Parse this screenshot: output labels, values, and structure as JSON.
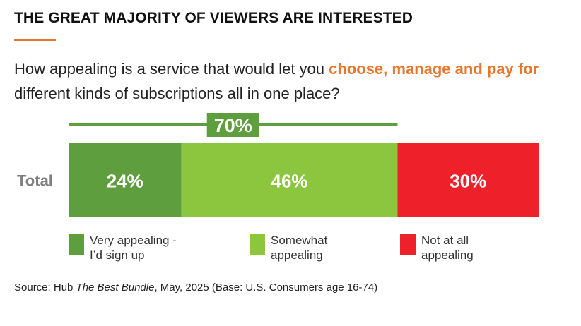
{
  "header": {
    "title": "THE GREAT MAJORITY OF VIEWERS ARE INTERESTED",
    "question_part1": "How appealing is a service that would let you ",
    "question_highlight": "choose, manage and pay for",
    "question_part2": " different kinds of subscriptions all in one place?"
  },
  "colors": {
    "accent": "#e8772e",
    "very_appealing": "#5f9e3f",
    "somewhat_appealing": "#8cc63f",
    "not_appealing": "#ee2029",
    "combined_line": "#5f9e3f",
    "label_text": "#ffffff",
    "row_label": "#7f7f7f"
  },
  "chart_data": {
    "type": "bar",
    "orientation": "horizontal",
    "stacked": true,
    "categories": [
      "Total"
    ],
    "series": [
      {
        "name": "Very appealing - I'd sign up",
        "values": [
          24
        ],
        "label": "24%"
      },
      {
        "name": "Somewhat appealing",
        "values": [
          46
        ],
        "label": "46%"
      },
      {
        "name": "Not at all appealing",
        "values": [
          30
        ],
        "label": "30%"
      }
    ],
    "combined": {
      "series_included": [
        "Very appealing - I'd sign up",
        "Somewhat appealing"
      ],
      "value": 70,
      "label": "70%"
    },
    "xlim": [
      0,
      100
    ],
    "title": "THE GREAT MAJORITY OF VIEWERS ARE INTERESTED"
  },
  "legend": [
    {
      "line1": "Very appealing -",
      "line2": "I’d sign up"
    },
    {
      "line1": "Somewhat",
      "line2": "appealing"
    },
    {
      "line1": "Not at all",
      "line2": "appealing"
    }
  ],
  "source": {
    "prefix": "Source: Hub ",
    "publication": "The Best Bundle",
    "suffix": ", May, 2025 (Base: U.S. Consumers age 16-74)"
  }
}
